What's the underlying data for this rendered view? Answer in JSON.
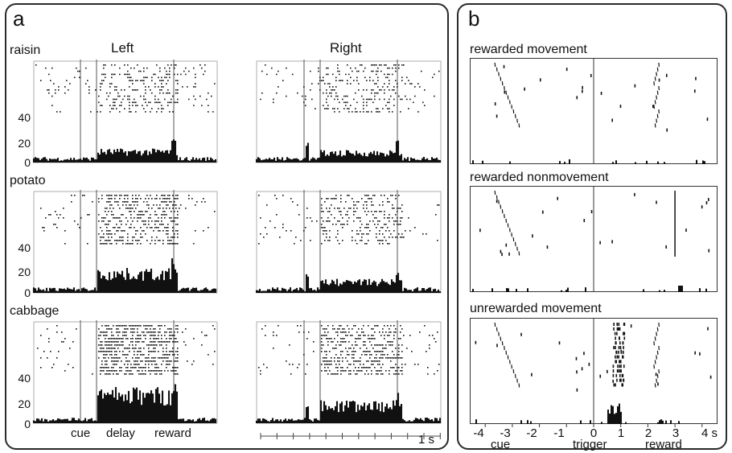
{
  "panel_a": {
    "label": "a",
    "columns": [
      "Left",
      "Right"
    ],
    "foods": [
      "raisin",
      "potato",
      "cabbage"
    ],
    "y_ticks": [
      "40",
      "20",
      "0"
    ],
    "x_labels": [
      "cue",
      "delay",
      "reward"
    ],
    "scale_label": "1 s"
  },
  "panel_b": {
    "label": "b",
    "titles": [
      "rewarded movement",
      "rewarded nonmovement",
      "unrewarded movement"
    ],
    "x_ticks": [
      "-4",
      "-3",
      "-2",
      "-1",
      "0",
      "1",
      "2",
      "3",
      "4 s"
    ],
    "x_labels": [
      "cue",
      "trigger",
      "reward"
    ]
  },
  "colors": {
    "border": "#2a2a2a",
    "ink": "#111111"
  }
}
